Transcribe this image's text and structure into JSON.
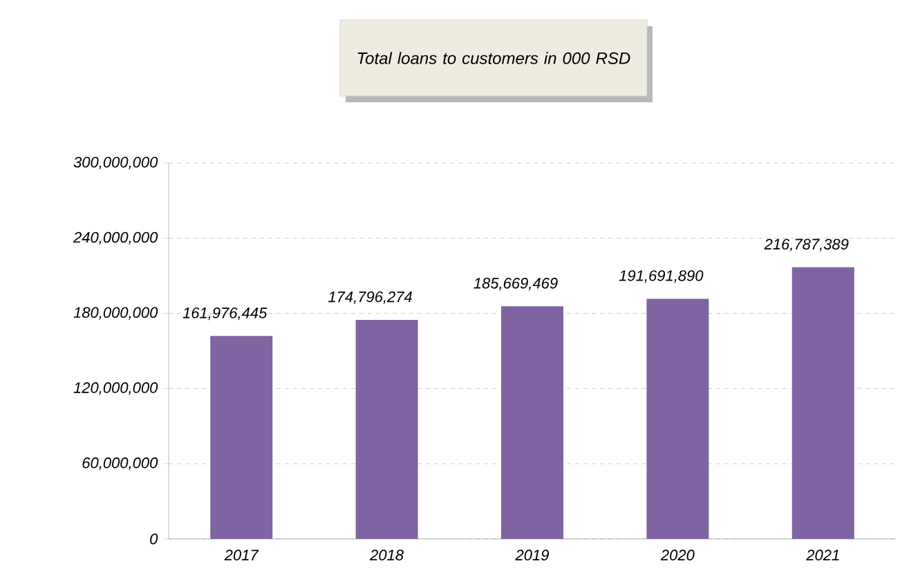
{
  "chart_data": {
    "type": "bar",
    "title": "Total loans to customers in 000 RSD",
    "categories": [
      "2017",
      "2018",
      "2019",
      "2020",
      "2021"
    ],
    "values": [
      161976445,
      174796274,
      185669469,
      191691890,
      216787389
    ],
    "value_labels": [
      "161,976,445",
      "174,796,274",
      "185,669,469",
      "191,691,890",
      "216,787,389"
    ],
    "color": "#8064a2",
    "ylim": [
      0,
      300000000
    ],
    "yticks": [
      {
        "value": 0,
        "label": "0"
      },
      {
        "value": 60000000,
        "label": "60,000,000"
      },
      {
        "value": 120000000,
        "label": "120,000,000"
      },
      {
        "value": 180000000,
        "label": "180,000,000"
      },
      {
        "value": 240000000,
        "label": "240,000,000"
      },
      {
        "value": 300000000,
        "label": "300,000,000"
      }
    ],
    "grid": "y"
  }
}
